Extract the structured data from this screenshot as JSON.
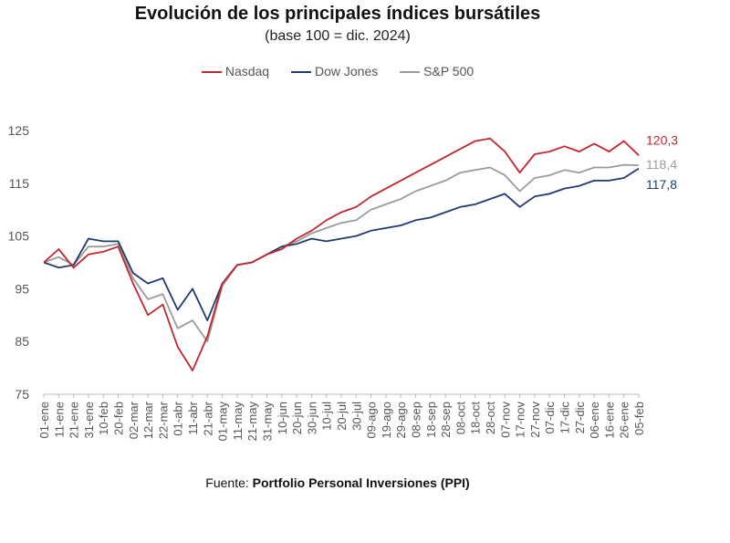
{
  "chart_data": {
    "type": "line",
    "title": "Evolución de los principales índices bursátiles",
    "subtitle": "(base 100 = dic. 2024)",
    "xlabel": "",
    "ylabel": "",
    "ylim": [
      75,
      125
    ],
    "yticks": [
      75,
      85,
      95,
      105,
      115,
      125
    ],
    "grid": false,
    "legend_position": "top-center",
    "categories": [
      "01-ene",
      "11-ene",
      "21-ene",
      "31-ene",
      "10-feb",
      "20-feb",
      "02-mar",
      "12-mar",
      "22-mar",
      "01-abr",
      "11-abr",
      "21-abr",
      "01-may",
      "11-may",
      "21-may",
      "31-may",
      "10-jun",
      "20-jun",
      "30-jun",
      "10-jul",
      "20-jul",
      "30-jul",
      "09-ago",
      "19-ago",
      "29-ago",
      "08-sep",
      "18-sep",
      "28-sep",
      "08-oct",
      "18-oct",
      "28-oct",
      "07-nov",
      "17-nov",
      "27-nov",
      "07-dic",
      "17-dic",
      "27-dic",
      "06-ene",
      "16-ene",
      "26-ene",
      "05-feb"
    ],
    "series": [
      {
        "name": "Nasdaq",
        "color": "#c0282d",
        "values": [
          100,
          102.5,
          99,
          101.5,
          102,
          103,
          96,
          90,
          92,
          84,
          79.5,
          86,
          96,
          99.5,
          100,
          101.5,
          102.5,
          104.5,
          106,
          108,
          109.5,
          110.5,
          112.5,
          114,
          115.5,
          117,
          118.5,
          120,
          121.5,
          123,
          123.5,
          121,
          117,
          120.5,
          121,
          122,
          121,
          122.5,
          121,
          123,
          120.3
        ],
        "end_label": "120,3"
      },
      {
        "name": "Dow Jones",
        "color": "#1f3a6e",
        "values": [
          100,
          99,
          99.5,
          104.5,
          104,
          104,
          98,
          96,
          97,
          91,
          95,
          89,
          96,
          99.5,
          100,
          101.5,
          103,
          103.5,
          104.5,
          104,
          104.5,
          105,
          106,
          106.5,
          107,
          108,
          108.5,
          109.5,
          110.5,
          111,
          112,
          113,
          110.5,
          112.5,
          113,
          114,
          114.5,
          115.5,
          115.5,
          116,
          117.8
        ],
        "end_label": "117,8"
      },
      {
        "name": "S&P 500",
        "color": "#9b9b9b",
        "values": [
          100,
          101,
          99.5,
          103,
          103,
          103.5,
          97,
          93,
          94,
          87.5,
          89,
          85,
          95.5,
          99.5,
          100,
          101.5,
          103,
          104,
          105.5,
          106.5,
          107.5,
          108,
          110,
          111,
          112,
          113.5,
          114.5,
          115.5,
          117,
          117.5,
          118,
          116.5,
          113.5,
          116,
          116.5,
          117.5,
          117,
          118,
          118,
          118.5,
          118.4
        ],
        "end_label": "118,4"
      }
    ]
  },
  "source": {
    "prefix": "Fuente: ",
    "name": "Portfolio Personal Inversiones (PPI)"
  }
}
